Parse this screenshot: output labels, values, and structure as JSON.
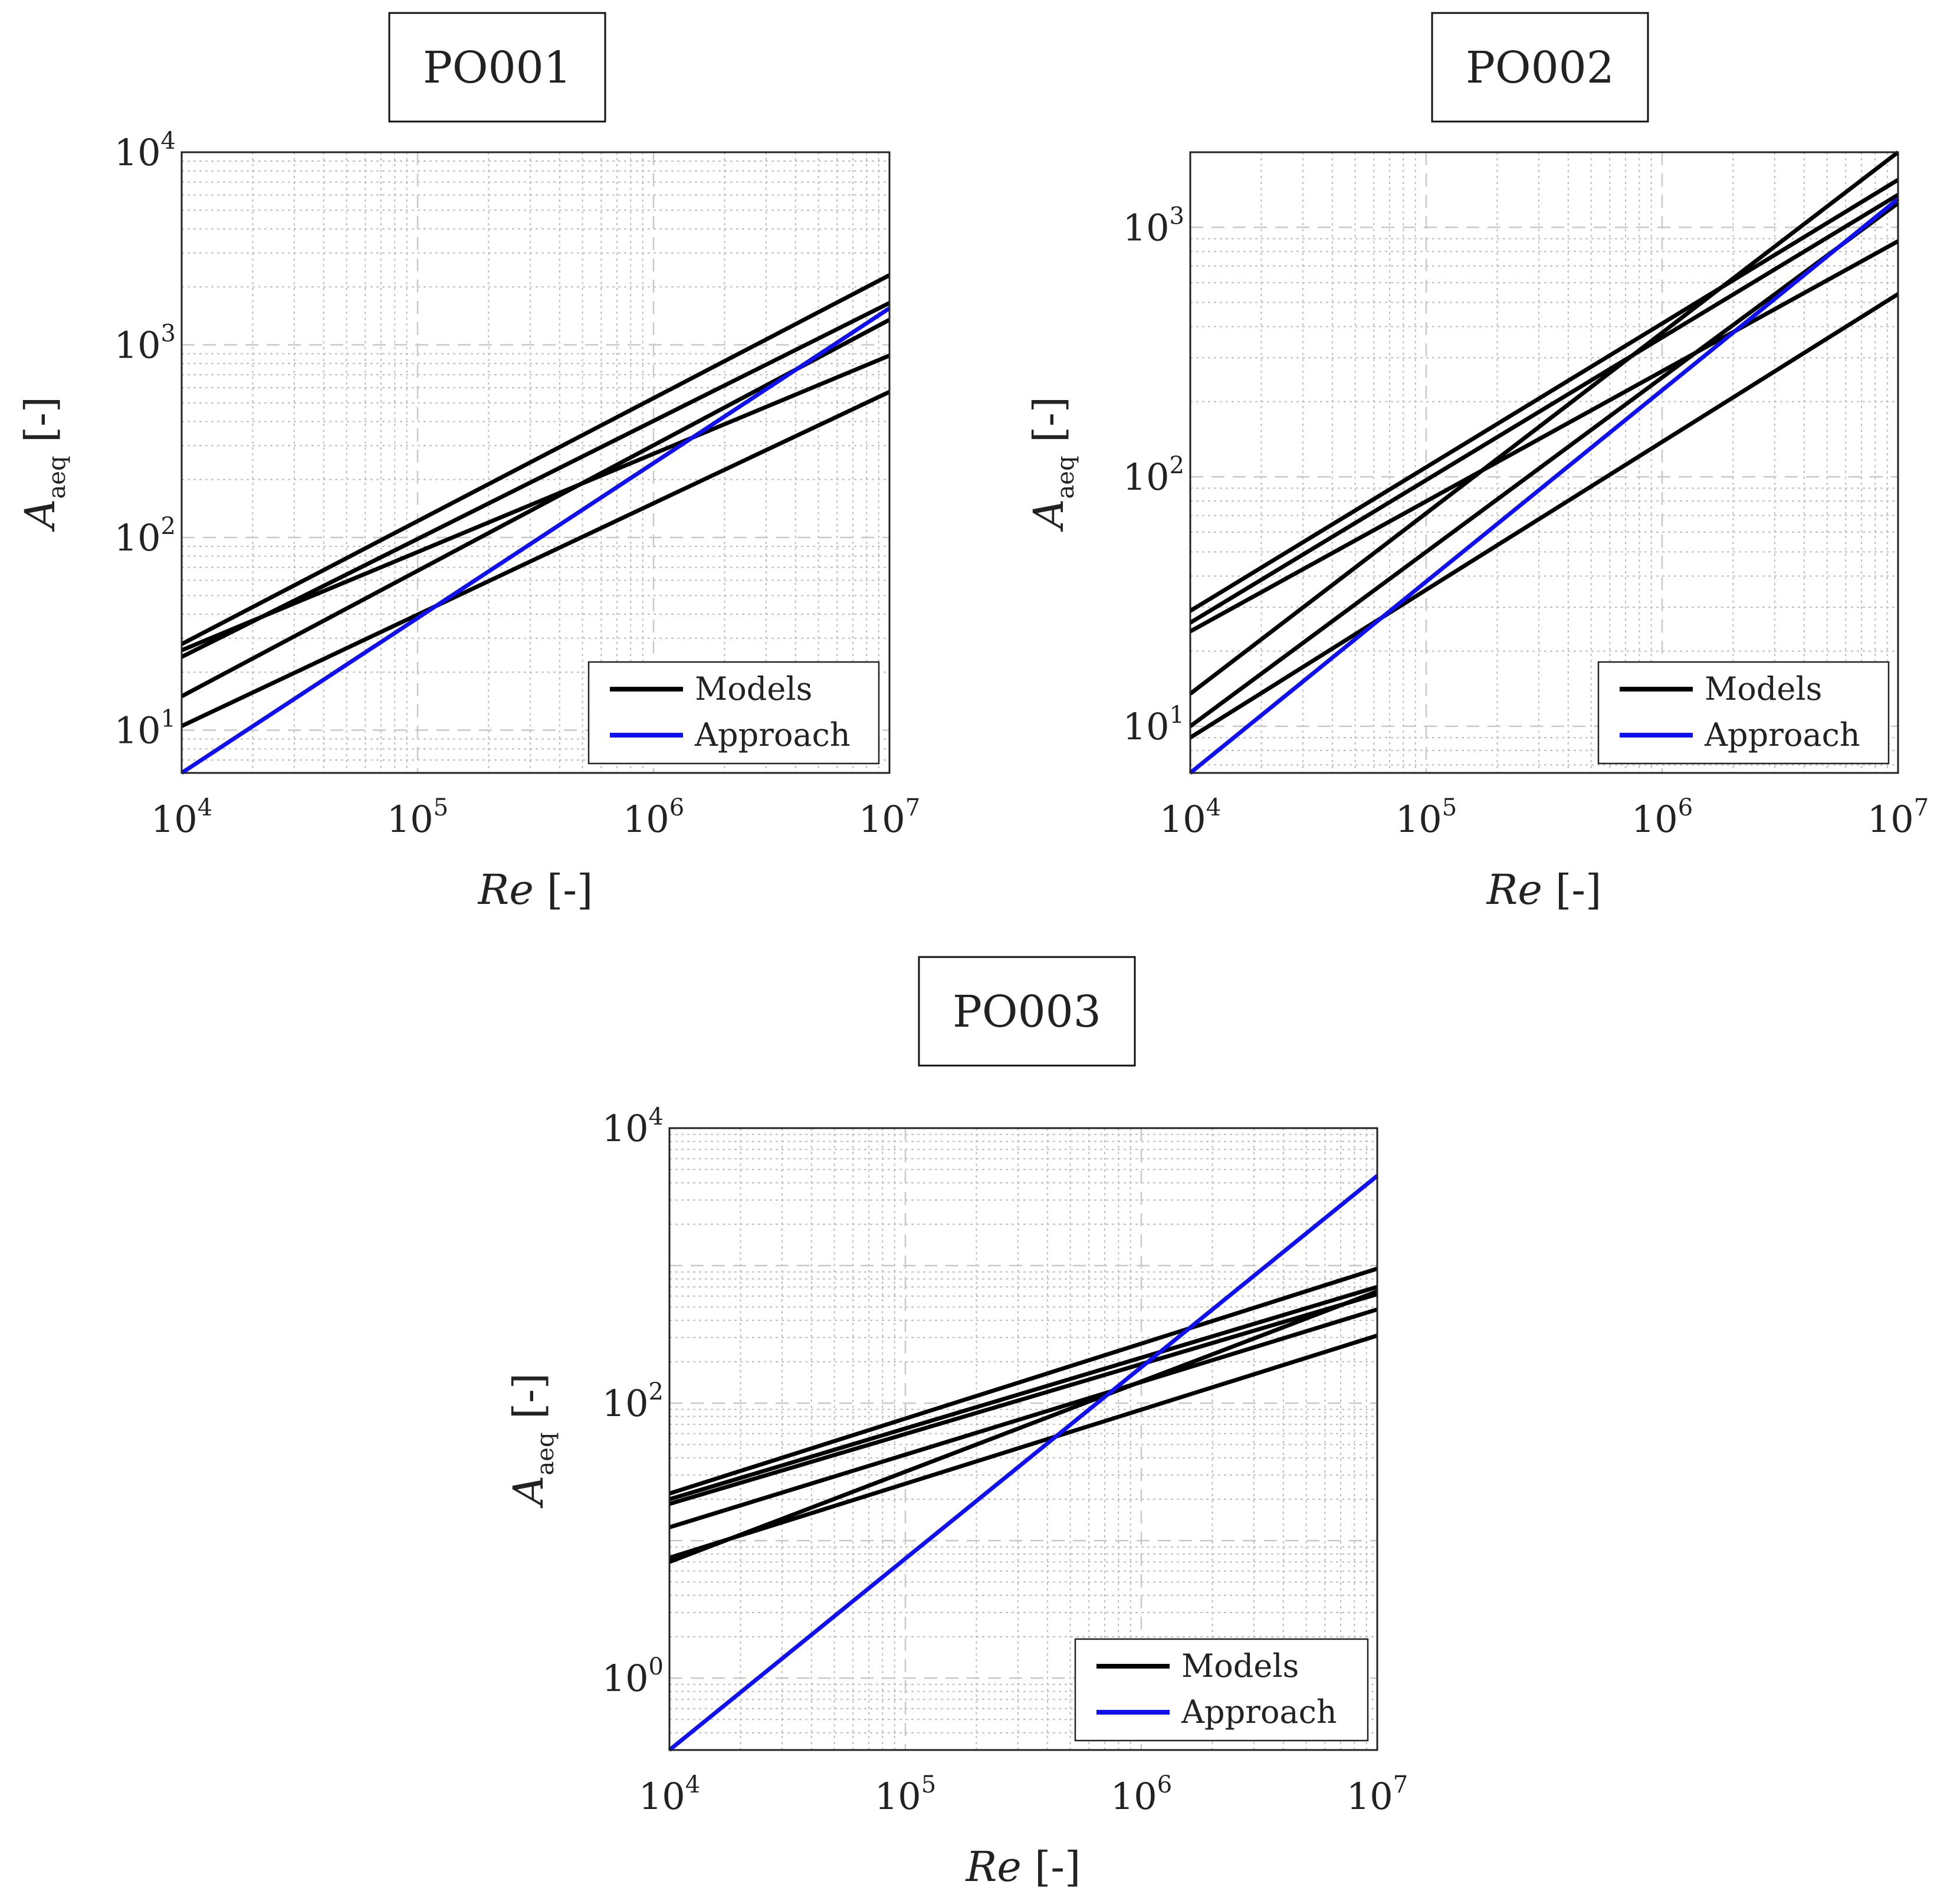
{
  "chart_data": [
    {
      "type": "line",
      "panel_title": "PO001",
      "xlabel": {
        "symbol": "Re",
        "unit": "[-]"
      },
      "ylabel": {
        "symbol": "A",
        "subscript": "aeq",
        "unit": "[-]"
      },
      "xscale": "log",
      "yscale": "log",
      "xlim": [
        10000,
        10000000
      ],
      "ylim": [
        6,
        10000
      ],
      "x_ticks": [
        {
          "base": "10",
          "exp": "4",
          "value": 10000
        },
        {
          "base": "10",
          "exp": "5",
          "value": 100000
        },
        {
          "base": "10",
          "exp": "6",
          "value": 1000000
        },
        {
          "base": "10",
          "exp": "7",
          "value": 10000000
        }
      ],
      "y_ticks": [
        {
          "base": "10",
          "exp": "1",
          "value": 10
        },
        {
          "base": "10",
          "exp": "2",
          "value": 100
        },
        {
          "base": "10",
          "exp": "3",
          "value": 1000
        },
        {
          "base": "10",
          "exp": "4",
          "value": 10000
        }
      ],
      "grid": true,
      "legend": {
        "position": "bottom-right",
        "entries": [
          {
            "label": "Models",
            "color": "#000000"
          },
          {
            "label": "Approach",
            "color": "#1010ee"
          }
        ]
      },
      "series": [
        {
          "name": "Models",
          "color": "#000000",
          "x": [
            10000,
            10000000
          ],
          "y": [
            28,
            2300
          ]
        },
        {
          "name": "Models",
          "color": "#000000",
          "x": [
            10000,
            10000000
          ],
          "y": [
            24,
            1650
          ]
        },
        {
          "name": "Models",
          "color": "#000000",
          "x": [
            10000,
            10000000
          ],
          "y": [
            26,
            880
          ]
        },
        {
          "name": "Models",
          "color": "#000000",
          "x": [
            10000,
            10000000
          ],
          "y": [
            15,
            1350
          ]
        },
        {
          "name": "Models",
          "color": "#000000",
          "x": [
            10000,
            10000000
          ],
          "y": [
            10.5,
            570
          ]
        },
        {
          "name": "Approach",
          "color": "#1010ee",
          "x": [
            10000,
            10000000
          ],
          "y": [
            6,
            1550
          ]
        }
      ]
    },
    {
      "type": "line",
      "panel_title": "PO002",
      "xlabel": {
        "symbol": "Re",
        "unit": "[-]"
      },
      "ylabel": {
        "symbol": "A",
        "subscript": "aeq",
        "unit": "[-]"
      },
      "xscale": "log",
      "yscale": "log",
      "xlim": [
        10000,
        10000000
      ],
      "ylim": [
        6.5,
        2000
      ],
      "x_ticks": [
        {
          "base": "10",
          "exp": "4",
          "value": 10000
        },
        {
          "base": "10",
          "exp": "5",
          "value": 100000
        },
        {
          "base": "10",
          "exp": "6",
          "value": 1000000
        },
        {
          "base": "10",
          "exp": "7",
          "value": 10000000
        }
      ],
      "y_ticks": [
        {
          "base": "10",
          "exp": "1",
          "value": 10
        },
        {
          "base": "10",
          "exp": "2",
          "value": 100
        },
        {
          "base": "10",
          "exp": "3",
          "value": 1000
        }
      ],
      "grid": true,
      "legend": {
        "position": "bottom-right",
        "entries": [
          {
            "label": "Models",
            "color": "#000000"
          },
          {
            "label": "Approach",
            "color": "#1010ee"
          }
        ]
      },
      "series": [
        {
          "name": "Models",
          "color": "#000000",
          "x": [
            10000,
            10000000
          ],
          "y": [
            29,
            1550
          ]
        },
        {
          "name": "Models",
          "color": "#000000",
          "x": [
            10000,
            10000000
          ],
          "y": [
            26,
            1350
          ]
        },
        {
          "name": "Models",
          "color": "#000000",
          "x": [
            10000,
            10000000
          ],
          "y": [
            24,
            880
          ]
        },
        {
          "name": "Models",
          "color": "#000000",
          "x": [
            10000,
            10000000
          ],
          "y": [
            13.5,
            2000
          ]
        },
        {
          "name": "Models",
          "color": "#000000",
          "x": [
            10000,
            10000000
          ],
          "y": [
            10,
            1250
          ]
        },
        {
          "name": "Models",
          "color": "#000000",
          "x": [
            10000,
            10000000
          ],
          "y": [
            9,
            540
          ]
        },
        {
          "name": "Approach",
          "color": "#1010ee",
          "x": [
            10000,
            10000000
          ],
          "y": [
            6.5,
            1300
          ]
        }
      ]
    },
    {
      "type": "line",
      "panel_title": "PO003",
      "xlabel": {
        "symbol": "Re",
        "unit": "[-]"
      },
      "ylabel": {
        "symbol": "A",
        "subscript": "aeq",
        "unit": "[-]"
      },
      "xscale": "log",
      "yscale": "log",
      "xlim": [
        10000,
        10000000
      ],
      "ylim": [
        0.3,
        10000
      ],
      "x_ticks": [
        {
          "base": "10",
          "exp": "4",
          "value": 10000
        },
        {
          "base": "10",
          "exp": "5",
          "value": 100000
        },
        {
          "base": "10",
          "exp": "6",
          "value": 1000000
        },
        {
          "base": "10",
          "exp": "7",
          "value": 10000000
        }
      ],
      "y_ticks": [
        {
          "base": "10",
          "exp": "0",
          "value": 1
        },
        {
          "base": "10",
          "exp": "2",
          "value": 100
        },
        {
          "base": "10",
          "exp": "4",
          "value": 10000
        }
      ],
      "grid": true,
      "legend": {
        "position": "bottom-right",
        "entries": [
          {
            "label": "Models",
            "color": "#000000"
          },
          {
            "label": "Approach",
            "color": "#1010ee"
          }
        ]
      },
      "series": [
        {
          "name": "Models",
          "color": "#000000",
          "x": [
            10000,
            10000000
          ],
          "y": [
            22,
            950
          ]
        },
        {
          "name": "Models",
          "color": "#000000",
          "x": [
            10000,
            10000000
          ],
          "y": [
            20,
            700
          ]
        },
        {
          "name": "Models",
          "color": "#000000",
          "x": [
            10000,
            10000000
          ],
          "y": [
            18.5,
            620
          ]
        },
        {
          "name": "Models",
          "color": "#000000",
          "x": [
            10000,
            10000000
          ],
          "y": [
            12.5,
            480
          ]
        },
        {
          "name": "Models",
          "color": "#000000",
          "x": [
            10000,
            10000000
          ],
          "y": [
            7.5,
            310
          ]
        },
        {
          "name": "Models",
          "color": "#000000",
          "x": [
            10000,
            10000000
          ],
          "y": [
            7,
            650
          ]
        },
        {
          "name": "Approach",
          "color": "#1010ee",
          "x": [
            10000,
            10000000
          ],
          "y": [
            0.3,
            4500
          ]
        }
      ]
    }
  ]
}
